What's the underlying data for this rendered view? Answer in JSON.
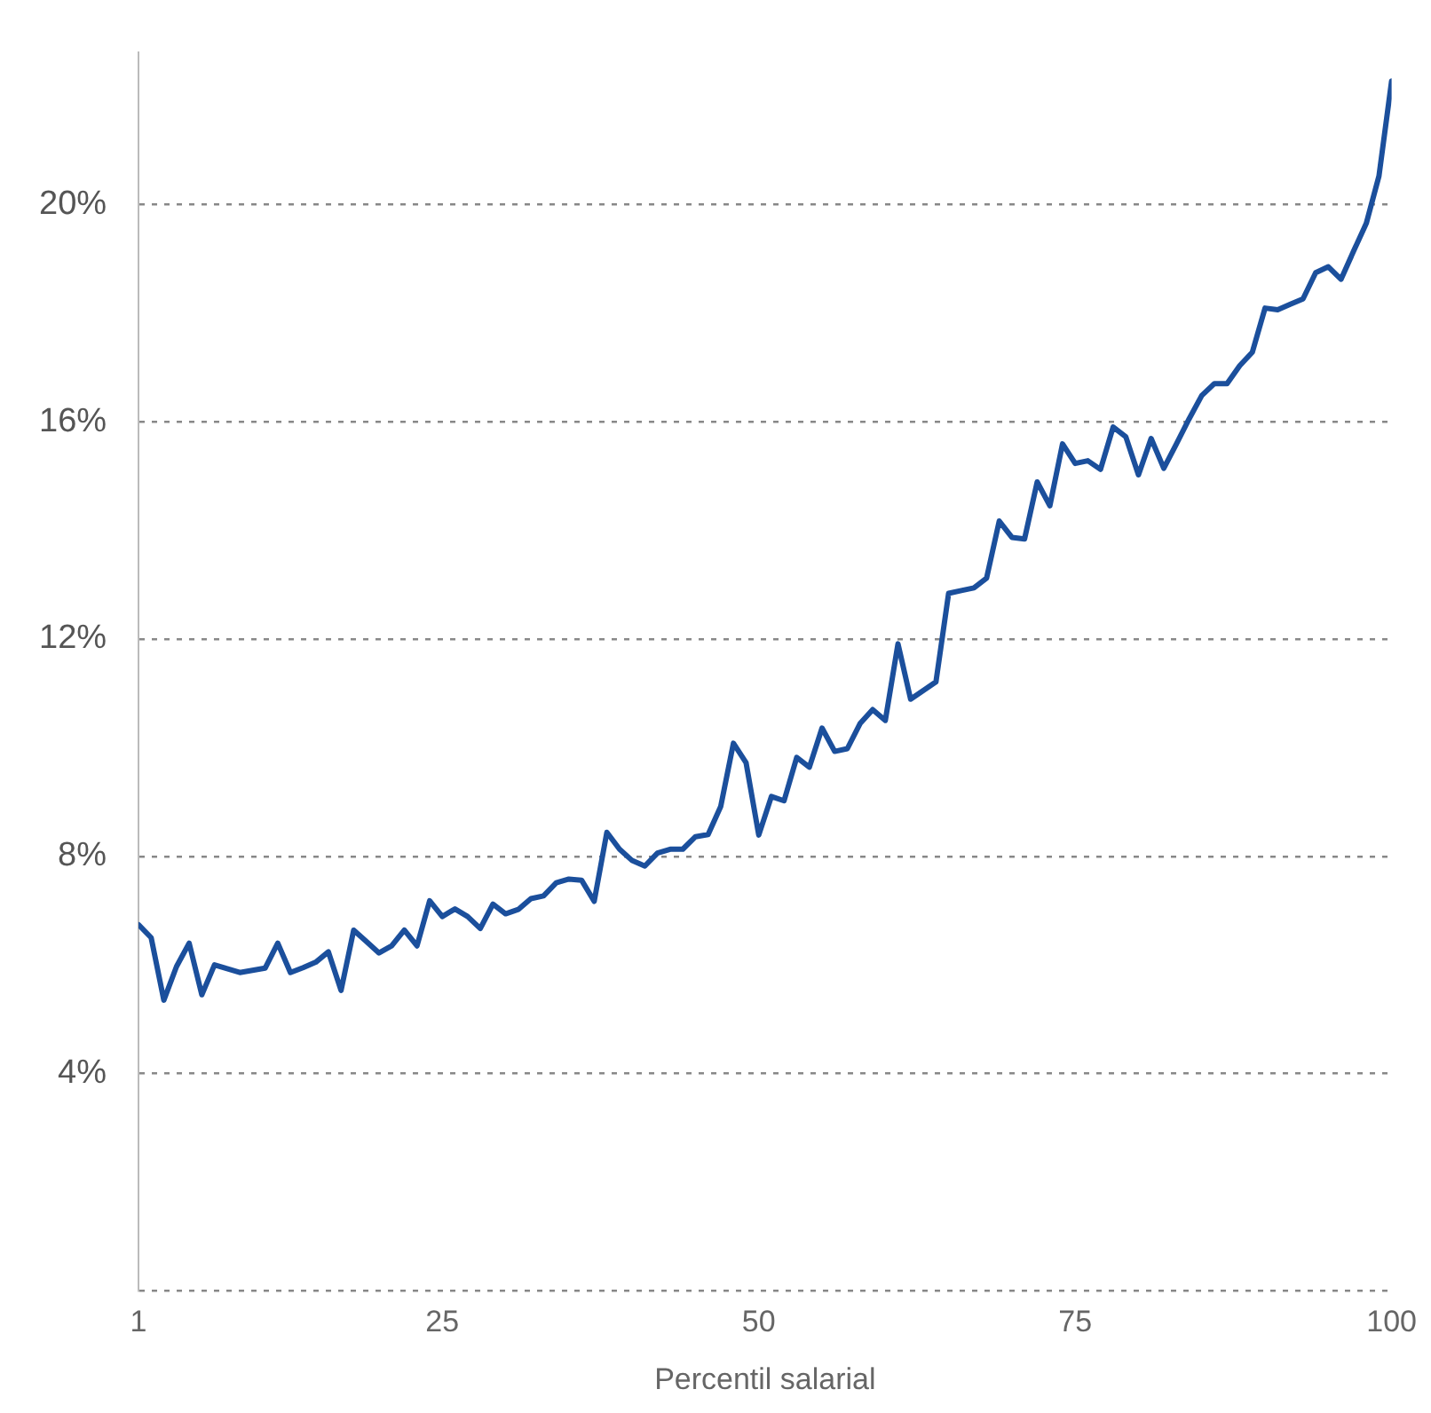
{
  "chart_data": {
    "type": "line",
    "xlabel": "Percentil salarial",
    "x": [
      1,
      2,
      3,
      4,
      5,
      6,
      7,
      8,
      9,
      10,
      11,
      12,
      13,
      14,
      15,
      16,
      17,
      18,
      19,
      20,
      21,
      22,
      23,
      24,
      25,
      26,
      27,
      28,
      29,
      30,
      31,
      32,
      33,
      34,
      35,
      36,
      37,
      38,
      39,
      40,
      41,
      42,
      43,
      44,
      45,
      46,
      47,
      48,
      49,
      50,
      51,
      52,
      53,
      54,
      55,
      56,
      57,
      58,
      59,
      60,
      61,
      62,
      63,
      64,
      65,
      66,
      67,
      68,
      69,
      70,
      71,
      72,
      73,
      74,
      75,
      76,
      77,
      78,
      79,
      80,
      81,
      82,
      83,
      84,
      85,
      86,
      87,
      88,
      89,
      90,
      91,
      92,
      93,
      94,
      95,
      96,
      97,
      98,
      99,
      100
    ],
    "series": [
      {
        "color": "#1b4f9c",
        "values": [
          6.74,
          6.5,
          5.35,
          5.97,
          6.4,
          5.45,
          6.0,
          5.93,
          5.86,
          5.9,
          5.94,
          6.4,
          5.86,
          5.95,
          6.05,
          6.24,
          5.53,
          6.64,
          6.43,
          6.22,
          6.35,
          6.64,
          6.35,
          7.18,
          6.89,
          7.03,
          6.89,
          6.67,
          7.12,
          6.94,
          7.02,
          7.22,
          7.27,
          7.51,
          7.58,
          7.56,
          7.17,
          8.44,
          8.13,
          7.92,
          7.82,
          8.06,
          8.13,
          8.13,
          8.36,
          8.4,
          8.92,
          10.08,
          9.72,
          8.39,
          9.1,
          9.02,
          9.82,
          9.64,
          10.36,
          9.93,
          9.98,
          10.44,
          10.7,
          10.5,
          11.91,
          10.89,
          11.05,
          11.21,
          12.84,
          12.89,
          12.94,
          13.12,
          14.17,
          13.87,
          13.84,
          14.89,
          14.45,
          15.59,
          15.23,
          15.28,
          15.12,
          15.9,
          15.72,
          15.02,
          15.69,
          15.14,
          15.59,
          16.05,
          16.48,
          16.7,
          16.7,
          17.03,
          17.28,
          18.09,
          18.06,
          18.16,
          18.26,
          18.74,
          18.85,
          18.62,
          19.14,
          19.65,
          20.52,
          22.27
        ]
      }
    ],
    "xlim": [
      1,
      100
    ],
    "xticks": [
      1,
      25,
      50,
      75,
      100
    ],
    "ylim": [
      0,
      22.8
    ],
    "yticks": [
      {
        "value": 0,
        "label": null
      },
      {
        "value": 4,
        "label": "4%"
      },
      {
        "value": 8,
        "label": "8%"
      },
      {
        "value": 12,
        "label": "12%"
      },
      {
        "value": 16,
        "label": "16%"
      },
      {
        "value": 20,
        "label": "20%"
      }
    ],
    "grid": "y",
    "legend": false,
    "marker": "none",
    "line_style": "solid"
  }
}
